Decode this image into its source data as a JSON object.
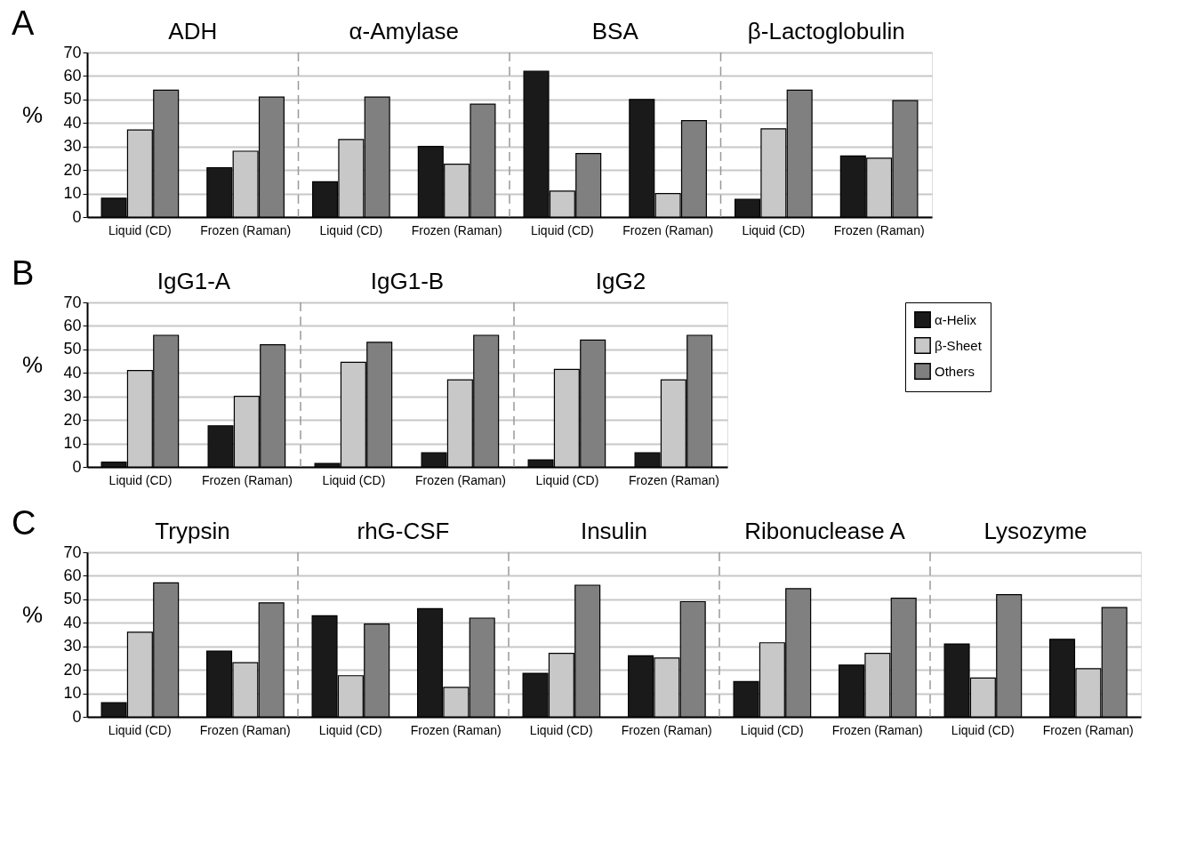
{
  "chart_data": [
    {
      "type": "bar",
      "ylabel": "%",
      "annotations": [
        "A",
        "ADH",
        "α-Amylase",
        "BSA",
        "β-Lactoglobulin"
      ],
      "categories": [
        "Liquid (CD)",
        "Frozen (Raman)",
        "Liquid (CD)",
        "Frozen (Raman)",
        "Liquid (CD)",
        "Frozen (Raman)",
        "Liquid (CD)",
        "Frozen (Raman)"
      ],
      "series": [
        {
          "color": "#1a1a1a",
          "values": [
            8,
            21,
            15,
            30,
            62,
            50,
            7.5,
            26
          ]
        },
        {
          "color": "#c8c8c8",
          "values": [
            37,
            28,
            33,
            22.5,
            11,
            10,
            37.5,
            25
          ]
        },
        {
          "color": "#808080",
          "values": [
            54,
            51,
            51,
            48,
            27,
            41,
            54,
            49.5
          ]
        }
      ],
      "ylim": [
        0,
        70
      ],
      "yticks": [
        0,
        10,
        20,
        30,
        40,
        50,
        60,
        70
      ],
      "grid": "y",
      "legend": false
    },
    {
      "type": "bar",
      "ylabel": "%",
      "annotations": [
        "B",
        "IgG1-A",
        "IgG1-B",
        "IgG2"
      ],
      "categories": [
        "Liquid (CD)",
        "Frozen (Raman)",
        "Liquid (CD)",
        "Frozen (Raman)",
        "Liquid (CD)",
        "Frozen (Raman)"
      ],
      "series": [
        {
          "name": "α-Helix",
          "color": "#1a1a1a",
          "values": [
            2,
            17.5,
            1.5,
            6,
            3,
            6
          ]
        },
        {
          "name": "β-Sheet",
          "color": "#c8c8c8",
          "values": [
            41,
            30,
            44.5,
            37,
            41.5,
            37
          ]
        },
        {
          "name": "Others",
          "color": "#808080",
          "values": [
            56,
            52,
            53,
            56,
            54,
            56
          ]
        }
      ],
      "ylim": [
        0,
        70
      ],
      "yticks": [
        0,
        10,
        20,
        30,
        40,
        50,
        60,
        70
      ],
      "grid": "y",
      "legend": "right"
    },
    {
      "type": "bar",
      "ylabel": "%",
      "annotations": [
        "C",
        "Trypsin",
        "rhG-CSF",
        "Insulin",
        "Ribonuclease A",
        "Lysozyme"
      ],
      "categories": [
        "Liquid (CD)",
        "Frozen (Raman)",
        "Liquid (CD)",
        "Frozen (Raman)",
        "Liquid (CD)",
        "Frozen (Raman)",
        "Liquid (CD)",
        "Frozen (Raman)",
        "Liquid (CD)",
        "Frozen (Raman)"
      ],
      "series": [
        {
          "color": "#1a1a1a",
          "values": [
            6,
            28,
            43,
            46,
            18.5,
            26,
            15,
            22,
            31,
            33
          ]
        },
        {
          "color": "#c8c8c8",
          "values": [
            36,
            23,
            17.5,
            12.5,
            27,
            25,
            31.5,
            27,
            16.5,
            20.5
          ]
        },
        {
          "color": "#808080",
          "values": [
            57,
            48.5,
            39.5,
            42,
            56,
            49,
            54.5,
            50.5,
            52,
            46.5
          ]
        }
      ],
      "ylim": [
        0,
        70
      ],
      "yticks": [
        0,
        10,
        20,
        30,
        40,
        50,
        60,
        70
      ],
      "grid": "y",
      "legend": false
    }
  ]
}
